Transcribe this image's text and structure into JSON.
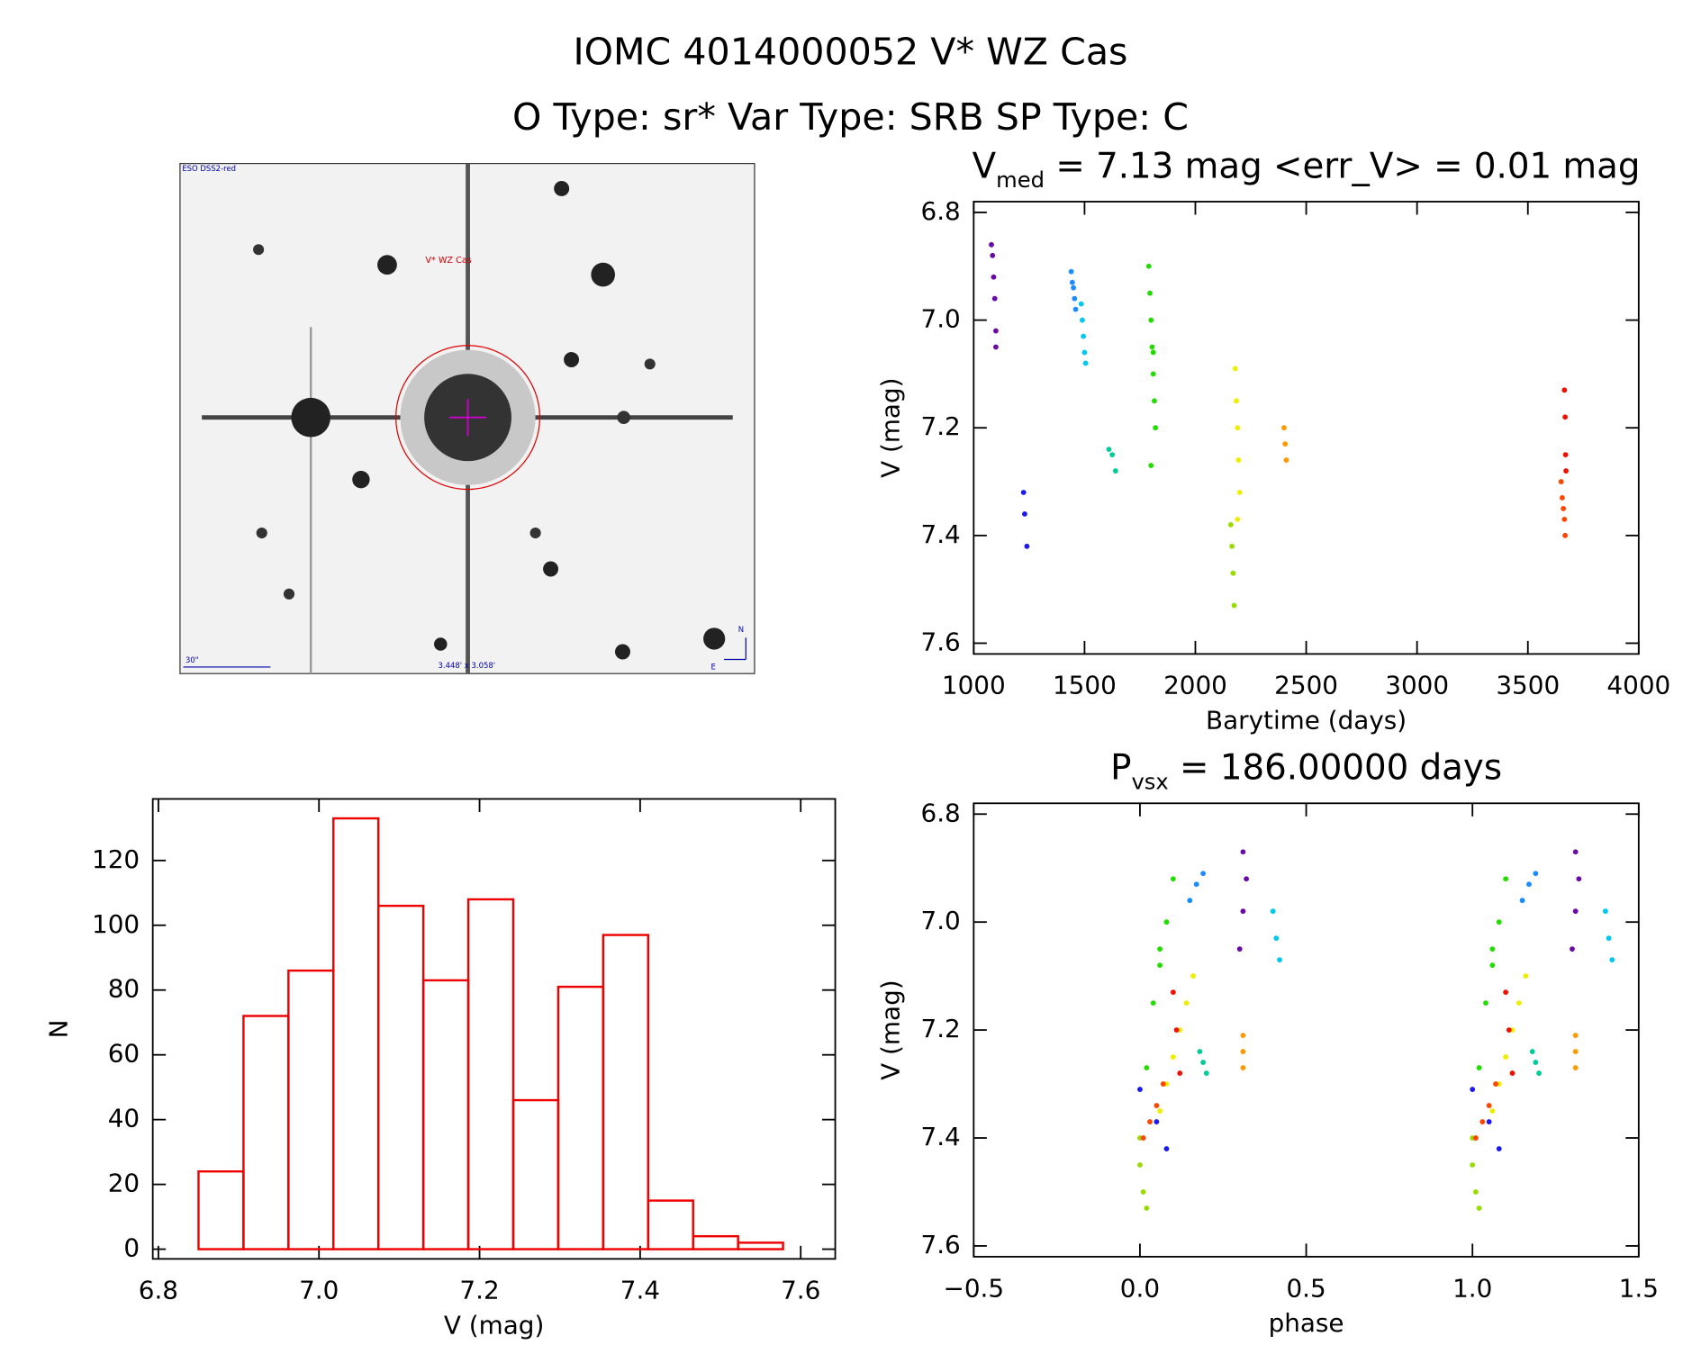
{
  "title": "IOMC 4014000052   V* WZ Cas",
  "subtitle": "O Type: sr*  Var Type: SRB  SP Type: C",
  "finder_image": {
    "survey": "ESO DSS2-red",
    "target": "V* WZ Cas",
    "scale": "30\"",
    "field": "3.448' x 3.058'",
    "north": "N",
    "east": "E"
  },
  "chart_data": [
    {
      "type": "scatter",
      "title": [
        "V",
        "med",
        " = 7.13 mag <err_V> = 0.01 mag"
      ],
      "x_label": "Barytime (days)",
      "y_label": "V (mag)",
      "xlim": [
        1000,
        4000
      ],
      "xticks": [
        1000,
        1500,
        2000,
        2500,
        3000,
        3500,
        4000
      ],
      "ylim": [
        6.78,
        7.62
      ],
      "y_inverted": true,
      "yticks": [
        6.8,
        {
          "value": 7,
          "label": "7.0"
        },
        7.2,
        7.4,
        7.6
      ],
      "series": [
        {
          "color": "#6a0aa8",
          "x": [
            1080,
            1085,
            1090,
            1095,
            1100,
            1100
          ],
          "values": [
            6.86,
            6.88,
            6.92,
            6.96,
            7.02,
            7.05
          ]
        },
        {
          "color": "#1a1aee",
          "x": [
            1225,
            1230,
            1240
          ],
          "values": [
            7.32,
            7.36,
            7.42
          ]
        },
        {
          "color": "#1a8cff",
          "x": [
            1440,
            1445,
            1450,
            1455,
            1460
          ],
          "values": [
            6.91,
            6.93,
            6.94,
            6.96,
            6.98
          ]
        },
        {
          "color": "#00c8ee",
          "x": [
            1485,
            1490,
            1495,
            1500,
            1505
          ],
          "values": [
            6.97,
            7.0,
            7.03,
            7.06,
            7.08
          ]
        },
        {
          "color": "#00cc99",
          "x": [
            1610,
            1625,
            1640
          ],
          "values": [
            7.24,
            7.25,
            7.28
          ]
        },
        {
          "color": "#22dd00",
          "x": [
            1790,
            1795,
            1800,
            1805,
            1810,
            1815,
            1820,
            1800,
            1810
          ],
          "values": [
            6.9,
            6.95,
            7.0,
            7.05,
            7.1,
            7.15,
            7.2,
            7.27,
            7.06
          ]
        },
        {
          "color": "#99dd00",
          "x": [
            2160,
            2165,
            2170,
            2175
          ],
          "values": [
            7.38,
            7.42,
            7.47,
            7.53
          ]
        },
        {
          "color": "#eeee00",
          "x": [
            2180,
            2185,
            2190,
            2195,
            2200,
            2190
          ],
          "values": [
            7.09,
            7.15,
            7.2,
            7.26,
            7.32,
            7.37
          ]
        },
        {
          "color": "#ff9900",
          "x": [
            2400,
            2405,
            2410
          ],
          "values": [
            7.2,
            7.23,
            7.26
          ]
        },
        {
          "color": "#ee1100",
          "x": [
            3665,
            3668,
            3670,
            3672
          ],
          "values": [
            7.13,
            7.18,
            7.25,
            7.28
          ]
        },
        {
          "color": "#ff4400",
          "x": [
            3650,
            3655,
            3660,
            3665,
            3668
          ],
          "values": [
            7.3,
            7.33,
            7.35,
            7.37,
            7.4
          ]
        }
      ]
    },
    {
      "type": "scatter",
      "title": [
        "P",
        "vsx",
        " = 186.00000 days"
      ],
      "x_label": "phase",
      "y_label": "V (mag)",
      "xlim": [
        -0.5,
        1.5
      ],
      "xticks": [
        {
          "value": -0.5,
          "label": "−0.5"
        },
        {
          "value": 0,
          "label": "0.0"
        },
        0.5,
        {
          "value": 1,
          "label": "1.0"
        },
        1.5
      ],
      "ylim": [
        6.78,
        7.62
      ],
      "y_inverted": true,
      "yticks": [
        6.8,
        {
          "value": 7,
          "label": "7.0"
        },
        7.2,
        7.4,
        7.6
      ],
      "series": [
        {
          "color": "#6a0aa8",
          "x": [
            0.31,
            0.32,
            0.31,
            0.3,
            1.31,
            1.32,
            1.31,
            1.3
          ],
          "values": [
            6.87,
            6.92,
            6.98,
            7.05,
            6.87,
            6.92,
            6.98,
            7.05
          ]
        },
        {
          "color": "#1a1aee",
          "x": [
            0.0,
            0.05,
            0.08,
            1.0,
            1.05,
            1.08
          ],
          "values": [
            7.31,
            7.37,
            7.42,
            7.31,
            7.37,
            7.42
          ]
        },
        {
          "color": "#1a8cff",
          "x": [
            0.15,
            0.17,
            0.19,
            1.15,
            1.17,
            1.19
          ],
          "values": [
            6.96,
            6.93,
            6.91,
            6.96,
            6.93,
            6.91
          ]
        },
        {
          "color": "#00c8ee",
          "x": [
            0.4,
            0.41,
            0.42,
            1.4,
            1.41,
            1.42
          ],
          "values": [
            6.98,
            7.03,
            7.07,
            6.98,
            7.03,
            7.07
          ]
        },
        {
          "color": "#00cc99",
          "x": [
            0.18,
            0.19,
            0.2,
            1.18,
            1.19,
            1.2
          ],
          "values": [
            7.24,
            7.26,
            7.28,
            7.24,
            7.26,
            7.28
          ]
        },
        {
          "color": "#22dd00",
          "x": [
            0.02,
            0.04,
            0.06,
            0.08,
            0.1,
            0.06,
            1.02,
            1.04,
            1.06,
            1.08,
            1.1,
            1.06
          ],
          "values": [
            7.27,
            7.15,
            7.08,
            7.0,
            6.92,
            7.05,
            7.27,
            7.15,
            7.08,
            7.0,
            6.92,
            7.05
          ]
        },
        {
          "color": "#99dd00",
          "x": [
            0.0,
            0.0,
            0.01,
            0.02,
            1.0,
            1.0,
            1.01,
            1.02
          ],
          "values": [
            7.4,
            7.45,
            7.5,
            7.53,
            7.4,
            7.45,
            7.5,
            7.53
          ]
        },
        {
          "color": "#eeee00",
          "x": [
            0.06,
            0.08,
            0.1,
            0.12,
            0.14,
            0.16,
            1.06,
            1.08,
            1.1,
            1.12,
            1.14,
            1.16
          ],
          "values": [
            7.35,
            7.3,
            7.25,
            7.2,
            7.15,
            7.1,
            7.35,
            7.3,
            7.25,
            7.2,
            7.15,
            7.1
          ]
        },
        {
          "color": "#ff9900",
          "x": [
            0.31,
            0.31,
            0.31,
            1.31,
            1.31,
            1.31
          ],
          "values": [
            7.21,
            7.24,
            7.27,
            7.21,
            7.24,
            7.27
          ]
        },
        {
          "color": "#ee1100",
          "x": [
            0.1,
            0.11,
            0.12,
            1.1,
            1.11,
            1.12
          ],
          "values": [
            7.13,
            7.2,
            7.28,
            7.13,
            7.2,
            7.28
          ]
        },
        {
          "color": "#ff4400",
          "x": [
            0.01,
            0.03,
            0.05,
            0.07,
            1.01,
            1.03,
            1.05,
            1.07
          ],
          "values": [
            7.4,
            7.37,
            7.34,
            7.3,
            7.4,
            7.37,
            7.34,
            7.3
          ]
        }
      ]
    },
    {
      "type": "histogram",
      "x_label": "V (mag)",
      "y_label": "N",
      "color": "#ee0000",
      "xlim": [
        6.793,
        7.643
      ],
      "xticks": [
        6.8,
        {
          "value": 7,
          "label": "7.0"
        },
        7.2,
        7.4,
        7.6
      ],
      "ylim": [
        -3,
        139
      ],
      "yticks": [
        0,
        20,
        40,
        60,
        80,
        100,
        120
      ],
      "bins": [
        6.85,
        6.906,
        6.962,
        7.018,
        7.074,
        7.13,
        7.186,
        7.242,
        7.298,
        7.354,
        7.41,
        7.466,
        7.522,
        7.578
      ],
      "values": [
        24,
        72,
        86,
        133,
        106,
        83,
        108,
        46,
        81,
        97,
        15,
        4,
        2
      ]
    }
  ]
}
